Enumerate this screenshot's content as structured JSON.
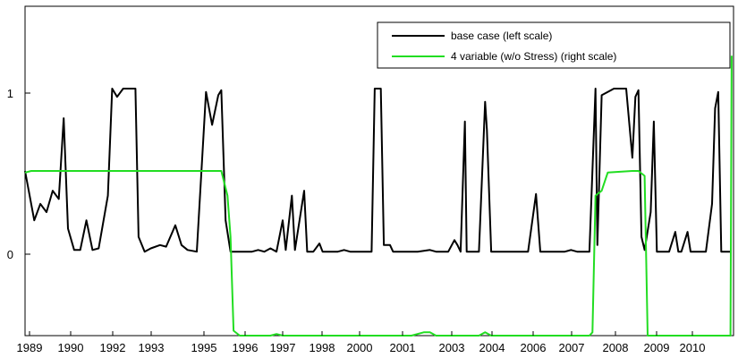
{
  "chart_data": {
    "type": "line",
    "x_tick_labels": [
      "1989",
      "1990",
      "1992",
      "1993",
      "1995",
      "1996",
      "1997",
      "1998",
      "2000",
      "2001",
      "2003",
      "2004",
      "2006",
      "2007",
      "2008",
      "2009",
      "2010"
    ],
    "y_tick_labels": [
      "1",
      "0"
    ],
    "ylim": [
      -0.5,
      1.5
    ],
    "legend_position": "top-right",
    "grid": false,
    "series": [
      {
        "name": "base case (left scale)",
        "color": "#000000",
        "axis": "left",
        "points": [
          [
            0,
            0.5
          ],
          [
            1.5,
            0.2
          ],
          [
            2.5,
            0.3
          ],
          [
            3.5,
            0.25
          ],
          [
            4.5,
            0.38
          ],
          [
            5.5,
            0.33
          ],
          [
            6.3,
            0.82
          ],
          [
            7,
            0.15
          ],
          [
            8,
            0.02
          ],
          [
            9,
            0.02
          ],
          [
            10,
            0.2
          ],
          [
            11,
            0.02
          ],
          [
            12,
            0.03
          ],
          [
            13.5,
            0.35
          ],
          [
            14.2,
            1.0
          ],
          [
            15,
            0.95
          ],
          [
            16,
            1.0
          ],
          [
            17,
            1.0
          ],
          [
            18,
            1.0
          ],
          [
            18.5,
            0.1
          ],
          [
            19.5,
            0.01
          ],
          [
            20.5,
            0.03
          ],
          [
            22,
            0.05
          ],
          [
            23,
            0.04
          ],
          [
            24.5,
            0.17
          ],
          [
            25.5,
            0.05
          ],
          [
            26.5,
            0.02
          ],
          [
            28,
            0.01
          ],
          [
            29.5,
            0.98
          ],
          [
            30.5,
            0.78
          ],
          [
            31.5,
            0.96
          ],
          [
            32,
            0.99
          ],
          [
            32.7,
            0.2
          ],
          [
            33.5,
            0.01
          ],
          [
            35,
            0.01
          ],
          [
            36,
            0.01
          ],
          [
            37,
            0.01
          ],
          [
            38,
            0.02
          ],
          [
            39,
            0.01
          ],
          [
            40,
            0.03
          ],
          [
            41,
            0.01
          ],
          [
            42,
            0.2
          ],
          [
            42.5,
            0.02
          ],
          [
            43.5,
            0.35
          ],
          [
            44,
            0.02
          ],
          [
            45.5,
            0.38
          ],
          [
            46,
            0.01
          ],
          [
            47,
            0.01
          ],
          [
            48,
            0.06
          ],
          [
            48.5,
            0.01
          ],
          [
            50,
            0.01
          ],
          [
            51,
            0.01
          ],
          [
            52,
            0.02
          ],
          [
            53,
            0.01
          ],
          [
            55,
            0.01
          ],
          [
            56.5,
            0.01
          ],
          [
            57,
            1.0
          ],
          [
            58,
            1.0
          ],
          [
            58.5,
            0.05
          ],
          [
            59.5,
            0.05
          ],
          [
            60,
            0.01
          ],
          [
            61,
            0.01
          ],
          [
            62,
            0.01
          ],
          [
            64,
            0.01
          ],
          [
            66,
            0.02
          ],
          [
            67,
            0.01
          ],
          [
            69,
            0.01
          ],
          [
            70,
            0.08
          ],
          [
            70.5,
            0.05
          ],
          [
            71,
            0.01
          ],
          [
            71.7,
            0.8
          ],
          [
            72,
            0.01
          ],
          [
            73,
            0.01
          ],
          [
            74,
            0.01
          ],
          [
            75,
            0.92
          ],
          [
            75.3,
            0.75
          ],
          [
            76,
            0.01
          ],
          [
            77,
            0.01
          ],
          [
            78,
            0.01
          ],
          [
            80,
            0.01
          ],
          [
            81,
            0.01
          ],
          [
            82,
            0.01
          ],
          [
            83.3,
            0.36
          ],
          [
            84,
            0.01
          ],
          [
            85,
            0.01
          ],
          [
            87,
            0.01
          ],
          [
            88,
            0.01
          ],
          [
            89,
            0.02
          ],
          [
            90,
            0.01
          ],
          [
            91,
            0.01
          ],
          [
            92,
            0.01
          ],
          [
            93,
            1.0
          ],
          [
            93.3,
            0.05
          ],
          [
            94,
            0.96
          ],
          [
            95,
            0.98
          ],
          [
            96,
            1.0
          ],
          [
            97,
            1.0
          ],
          [
            98,
            1.0
          ],
          [
            99,
            0.58
          ],
          [
            99.5,
            0.95
          ],
          [
            100,
            0.99
          ],
          [
            100.5,
            0.1
          ],
          [
            101,
            0.02
          ],
          [
            102,
            0.25
          ],
          [
            102.5,
            0.8
          ],
          [
            103,
            0.01
          ],
          [
            104,
            0.01
          ],
          [
            105,
            0.01
          ],
          [
            106,
            0.13
          ],
          [
            106.5,
            0.01
          ],
          [
            107,
            0.01
          ],
          [
            108,
            0.13
          ],
          [
            108.5,
            0.01
          ],
          [
            109,
            0.01
          ],
          [
            110,
            0.01
          ],
          [
            111,
            0.01
          ],
          [
            112,
            0.3
          ],
          [
            112.5,
            0.88
          ],
          [
            113,
            0.98
          ],
          [
            113.5,
            0.01
          ],
          [
            114,
            0.01
          ],
          [
            115,
            0.01
          ]
        ]
      },
      {
        "name": "4 variable (w/o Stress) (right scale)",
        "color": "#22dd22",
        "axis": "right",
        "points": [
          [
            0,
            0.49
          ],
          [
            1,
            0.5
          ],
          [
            32,
            0.5
          ],
          [
            33,
            0.35
          ],
          [
            33.5,
            0.1
          ],
          [
            34,
            -0.47
          ],
          [
            35,
            -0.5
          ],
          [
            40,
            -0.5
          ],
          [
            41,
            -0.49
          ],
          [
            42,
            -0.5
          ],
          [
            63,
            -0.5
          ],
          [
            65,
            -0.48
          ],
          [
            66,
            -0.48
          ],
          [
            67,
            -0.5
          ],
          [
            74,
            -0.5
          ],
          [
            75,
            -0.48
          ],
          [
            76,
            -0.5
          ],
          [
            92,
            -0.5
          ],
          [
            92.5,
            -0.48
          ],
          [
            93,
            0.35
          ],
          [
            94,
            0.38
          ],
          [
            95,
            0.49
          ],
          [
            99,
            0.5
          ],
          [
            100,
            0.5
          ],
          [
            101,
            0.47
          ],
          [
            101.5,
            -0.5
          ],
          [
            115,
            -0.5
          ],
          [
            115.2,
            1.2
          ]
        ]
      }
    ]
  }
}
